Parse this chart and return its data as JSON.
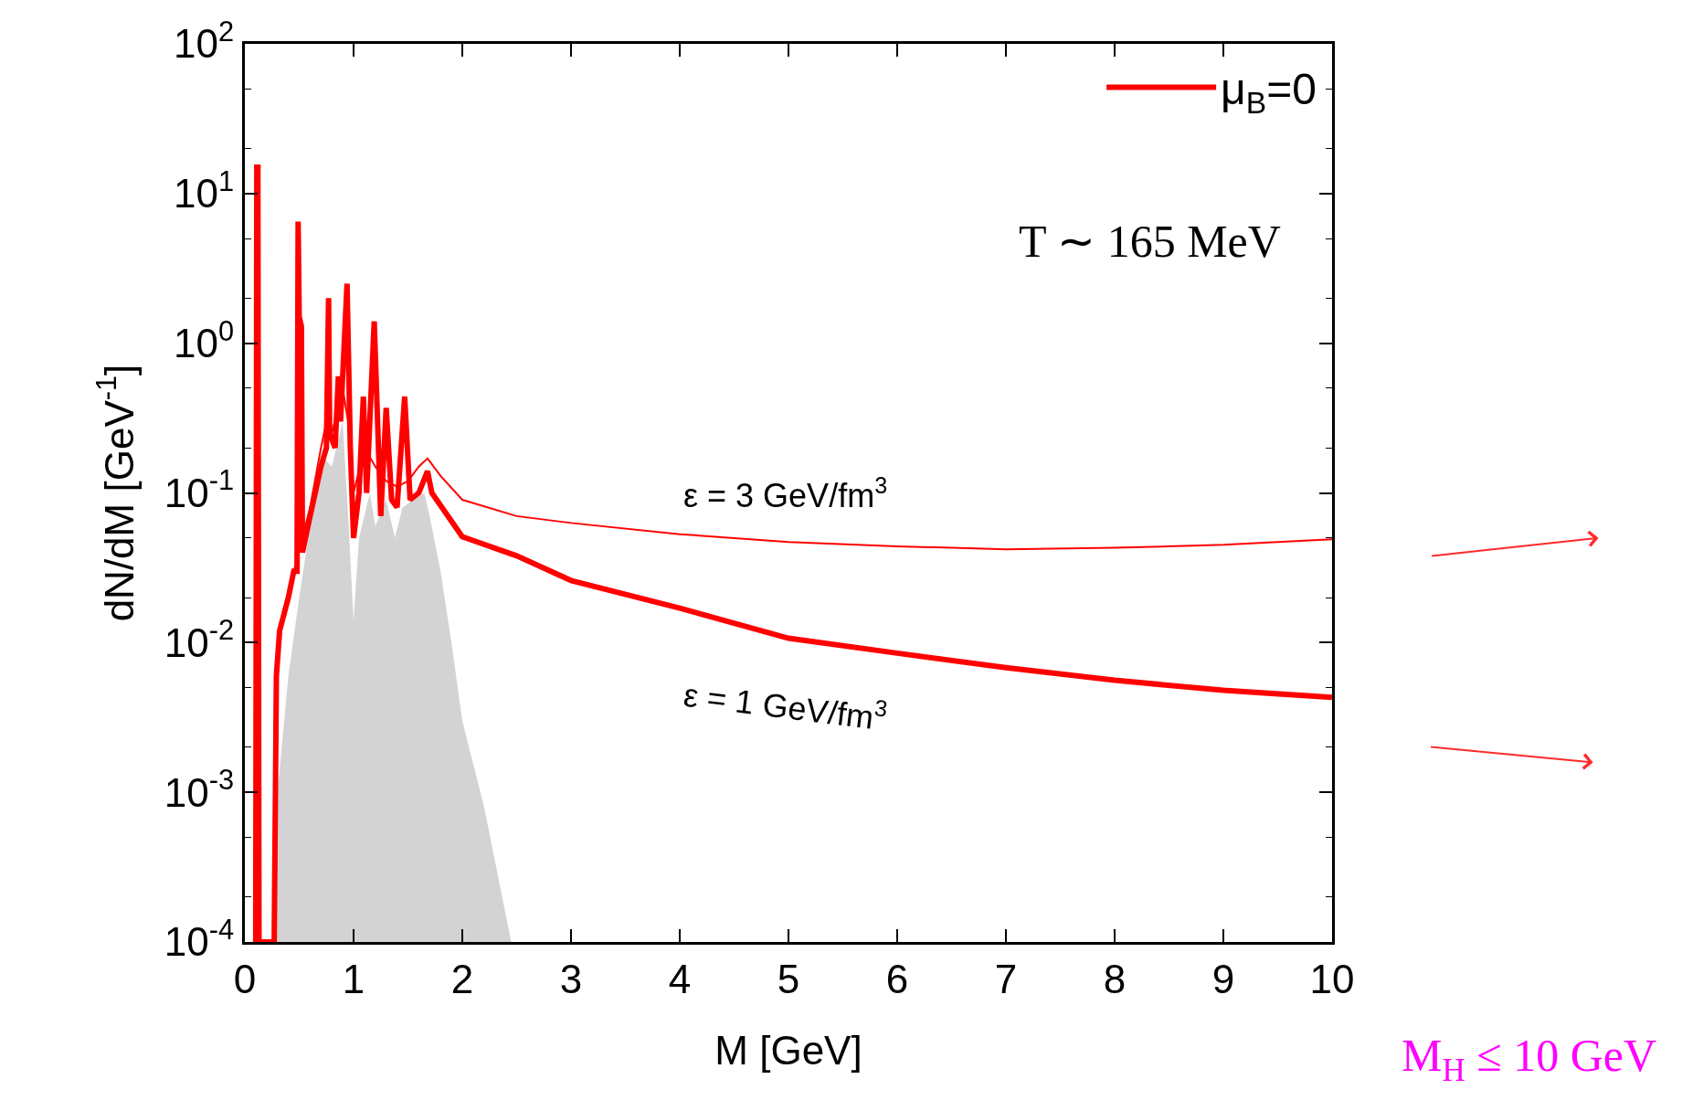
{
  "chart_data": {
    "type": "line",
    "xlabel": "M [GeV]",
    "ylabel": "dN/dM [GeV$^{-1}$]",
    "xlim": [
      0,
      10
    ],
    "xticks": [
      0,
      1,
      2,
      3,
      4,
      5,
      6,
      7,
      8,
      9,
      10
    ],
    "ylim": [
      0.0001,
      100
    ],
    "log": "y",
    "yticks": [
      {
        "value": 0.0001,
        "label": "10$^{-4}$"
      },
      {
        "value": 0.001,
        "label": "10$^{-3}$"
      },
      {
        "value": 0.01,
        "label": "10$^{-2}$"
      },
      {
        "value": 0.1,
        "label": "10$^{-1}$"
      },
      {
        "value": 1,
        "label": "10$^{0}$"
      },
      {
        "value": 10,
        "label": "10$^{1}$"
      },
      {
        "value": 100,
        "label": "10$^{2}$"
      }
    ],
    "legend": "top right",
    "series": [
      {
        "type": "area",
        "color": "#d3d3d3",
        "x": [
          0.27,
          0.3,
          0.4,
          0.5,
          0.6,
          0.7,
          0.8,
          0.9,
          0.95,
          1.0,
          1.05,
          1.15,
          1.2,
          1.3,
          1.38,
          1.45,
          1.55,
          1.65,
          1.7,
          1.8,
          1.9,
          2.0,
          2.2,
          2.45
        ],
        "values": [
          0.0001,
          0.001,
          0.006,
          0.02,
          0.06,
          0.18,
          0.15,
          0.3,
          0.07,
          0.014,
          0.05,
          0.1,
          0.06,
          0.09,
          0.05,
          0.08,
          0.09,
          0.1,
          0.07,
          0.03,
          0.01,
          0.003,
          0.0008,
          0.0001
        ]
      },
      {
        "color": "#ff0000",
        "x": [
          0.45,
          0.6,
          0.7,
          0.75,
          0.8,
          0.9,
          0.95,
          1.0,
          1.1,
          1.2,
          1.3,
          1.4,
          1.5,
          1.6,
          1.68,
          1.8,
          2.0,
          2.5,
          3,
          4,
          5,
          6,
          7,
          8,
          9,
          10
        ],
        "values": [
          0.03,
          0.08,
          0.2,
          0.3,
          0.25,
          0.5,
          0.3,
          0.1,
          0.2,
          0.15,
          0.12,
          0.11,
          0.12,
          0.15,
          0.17,
          0.13,
          0.09,
          0.07,
          0.063,
          0.053,
          0.047,
          0.044,
          0.042,
          0.043,
          0.045,
          0.049
        ]
      },
      {
        "name": "μ$_{B}$=0",
        "color": "#ff0000",
        "x": [
          0.1,
          0.11,
          0.12,
          0.13,
          0.27,
          0.29,
          0.32,
          0.4,
          0.45,
          0.48,
          0.49,
          0.5,
          0.52,
          0.53,
          0.6,
          0.7,
          0.75,
          0.77,
          0.78,
          0.83,
          0.86,
          0.88,
          0.94,
          0.97,
          1.0,
          1.05,
          1.09,
          1.12,
          1.19,
          1.25,
          1.3,
          1.35,
          1.4,
          1.47,
          1.52,
          1.6,
          1.68,
          1.72,
          2.0,
          2.5,
          3,
          4,
          5,
          6,
          7,
          8,
          9,
          10
        ],
        "values": [
          0.0001,
          15,
          15,
          0.0001,
          0.0001,
          0.006,
          0.012,
          0.02,
          0.03,
          0.03,
          6.5,
          1.5,
          1.3,
          0.04,
          0.07,
          0.15,
          0.2,
          2,
          0.25,
          0.2,
          0.6,
          0.3,
          2.5,
          0.2,
          0.05,
          0.1,
          0.44,
          0.1,
          1.4,
          0.07,
          0.37,
          0.09,
          0.08,
          0.44,
          0.09,
          0.1,
          0.14,
          0.1,
          0.051,
          0.038,
          0.026,
          0.017,
          0.0107,
          0.0085,
          0.0068,
          0.0056,
          0.0048,
          0.0043
        ]
      }
    ],
    "annotations": [
      "T ∼ 165 MeV",
      "ε = 3 GeV/fm$^{3}$",
      "ε = 1 GeV/fm$^{3}$",
      "M$_{H}$ ≤ 10 GeV"
    ]
  }
}
